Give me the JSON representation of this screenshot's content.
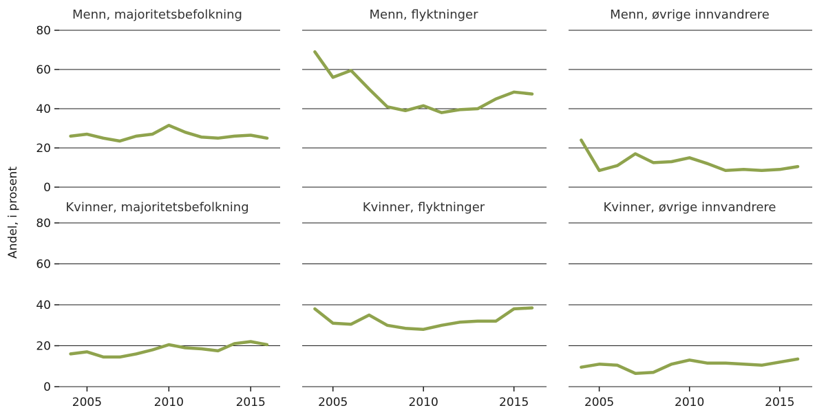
{
  "figure": {
    "background": "#ffffff",
    "ylabel": "Andel, i prosent"
  },
  "chart_data": {
    "type": "line",
    "layout": "small-multiples 2 rows x 3 columns",
    "x": [
      2004,
      2005,
      2006,
      2007,
      2008,
      2009,
      2010,
      2011,
      2012,
      2013,
      2014,
      2015,
      2016
    ],
    "xticks": [
      2005,
      2010,
      2015
    ],
    "ylim": [
      0,
      80
    ],
    "yticks": [
      0,
      20,
      40,
      60,
      80
    ],
    "ylabel": "Andel, i prosent",
    "grid": "horizontal gridlines at each y tick",
    "line_color": "#8fa34d",
    "tick_text_color": "#1a1a1a",
    "panels": [
      {
        "title": "Menn, majoritetsbefolkning",
        "values": [
          26,
          27,
          25,
          23.5,
          26,
          27,
          31.5,
          28,
          25.5,
          25,
          26,
          26.5,
          25
        ]
      },
      {
        "title": "Menn, flyktninger",
        "values": [
          69,
          56,
          59.5,
          50,
          41,
          39,
          41.5,
          38,
          39.5,
          40,
          45,
          48.5,
          47.5
        ]
      },
      {
        "title": "Menn, øvrige innvandrere",
        "values": [
          24,
          8.5,
          11,
          17,
          12.5,
          13,
          15,
          12,
          8.5,
          9,
          8.5,
          9,
          10.5
        ]
      },
      {
        "title": "Kvinner, majoritetsbefolkning",
        "values": [
          16,
          17,
          14.5,
          14.5,
          16,
          18,
          20.5,
          19,
          18.5,
          17.5,
          21,
          22,
          20.5
        ]
      },
      {
        "title": "Kvinner, flyktninger",
        "values": [
          38,
          31,
          30.5,
          35,
          30,
          28.5,
          28,
          30,
          31.5,
          32,
          32,
          38,
          38.5
        ]
      },
      {
        "title": "Kvinner, øvrige innvandrere",
        "values": [
          9.5,
          11,
          10.5,
          6.5,
          7,
          11,
          13,
          11.5,
          11.5,
          11,
          10.5,
          12,
          13.5
        ]
      }
    ]
  }
}
